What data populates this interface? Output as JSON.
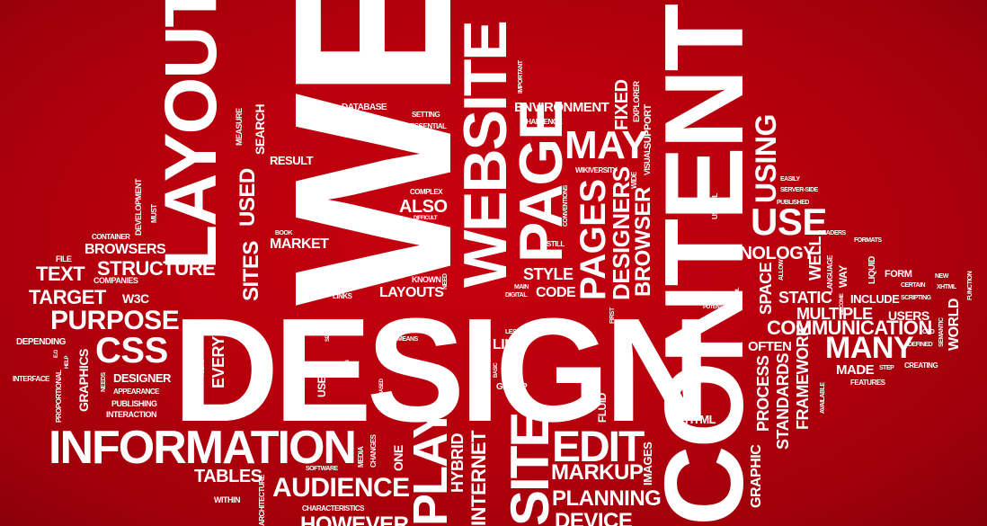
{
  "background_color": "#b3000d",
  "text_color": "#ffffff",
  "words": {
    "web": "WEB",
    "design": "DESIGN",
    "content": "CONTENT",
    "layout": "LAYOUT",
    "website": "WEBSITE",
    "page": "PAGE",
    "information": "INFORMATION",
    "site": "SITE",
    "play": "PLAY",
    "edit": "EDIT",
    "may": "MAY",
    "use": "USE",
    "using": "USING",
    "technology": "TECHNOLOGY",
    "communication": "COMMUNICATION",
    "many": "MANY",
    "multiple": "MULTIPLE",
    "static": "STATIC",
    "purpose": "PURPOSE",
    "css": "CSS",
    "structure": "STRUCTURE",
    "target": "TARGET",
    "text": "TEXT",
    "browsers": "BROWSERS",
    "audience": "AUDIENCE",
    "markup": "MARKUP",
    "planning": "PLANNING",
    "device": "DEVICE",
    "however": "HOWEVER",
    "tables": "TABLES",
    "pages": "PAGES",
    "designers": "DESIGNERS",
    "browser": "BROWSER",
    "sites": "SITES",
    "used": "USED",
    "market": "MARKET",
    "also": "ALSO",
    "layouts": "LAYOUTS",
    "style": "STYLE",
    "code": "CODE",
    "environment": "ENVIRONMENT",
    "fixed": "FIXED",
    "project": "PROJECT",
    "well": "WELL",
    "space": "SPACE",
    "process": "PROCESS",
    "standards": "STANDARDS",
    "framework": "FRAMEWORK",
    "graphic": "GRAPHIC",
    "often": "OFTEN",
    "made": "MADE",
    "users": "USERS",
    "world": "WORLD",
    "include": "INCLUDE",
    "form": "FORM",
    "html": "HTML",
    "like": "LIKE",
    "group": "GROUP",
    "fluid": "FLUID",
    "internet": "INTERNET",
    "hybrid": "HYBRID",
    "one": "ONE",
    "images": "IMAGES",
    "every": "EVERY",
    "user": "USER",
    "graphics": "GRAPHICS",
    "designer": "DESIGNER",
    "depending": "DEPENDING",
    "w3c": "W3C",
    "companies": "COMPANIES",
    "file": "FILE",
    "container": "CONTAINER",
    "development": "DEVELOPMENT",
    "must": "MUST",
    "measure": "MEASURE",
    "search": "SEARCH",
    "result": "RESULT",
    "database": "DATABASE",
    "setting": "SETTING",
    "essential": "ESSENTIAL",
    "challenge": "CHALLENGE",
    "important": "IMPORTANT",
    "explorer": "EXPLORER",
    "visual": "VISUAL",
    "support": "SUPPORT",
    "wikiversity": "WIKIVERSITY",
    "wide": "WIDE",
    "conventions": "CONVENTIONS",
    "useful": "USEFUL",
    "complex": "COMPLEX",
    "difficult": "DIFFICULT",
    "book": "BOOK",
    "known": "KNOWN",
    "need": "NEED",
    "links": "LINKS",
    "main": "MAIN",
    "digital": "DIGITAL",
    "still": "STILL",
    "easily": "EASILY",
    "server_side": "SERVER-SIDE",
    "published": "PUBLISHED",
    "readers": "READERS",
    "formats": "FORMATS",
    "language": "LANGUAGE",
    "liquid": "LIQUID",
    "allow": "ALLOW",
    "new": "NEW",
    "xhtml": "XHTML",
    "function": "FUNCTION",
    "certain": "CERTAIN",
    "scripting": "SCRIPTING",
    "become": "BECOME",
    "old": "OLD",
    "semantic": "SEMANTIC",
    "defined": "DEFINED",
    "creating": "CREATING",
    "step": "STEP",
    "features": "FEATURES",
    "available": "AVAILABLE",
    "potential": "POTENTIAL",
    "control": "CONTROL",
    "first": "FIRST",
    "less": "LESS",
    "basic": "BASIC",
    "means": "MEANS",
    "based": "BASED",
    "taking": "TAKING",
    "size": "SIZE",
    "today": "TODAY",
    "done": "DONE",
    "media": "MEDIA",
    "changes": "CHANGES",
    "software": "SOFTWARE",
    "characteristics": "CHARACTERISTICS",
    "within": "WITHIN",
    "architecture": "ARCHITECTURE",
    "interface": "INTERFACE",
    "eg": "E.G",
    "help": "HELP",
    "proportional": "PROPORTIONAL",
    "needs": "NEEDS",
    "appearance": "APPEARANCE",
    "publishing": "PUBLISHING",
    "interaction": "INTERACTION",
    "way": "WAY"
  }
}
